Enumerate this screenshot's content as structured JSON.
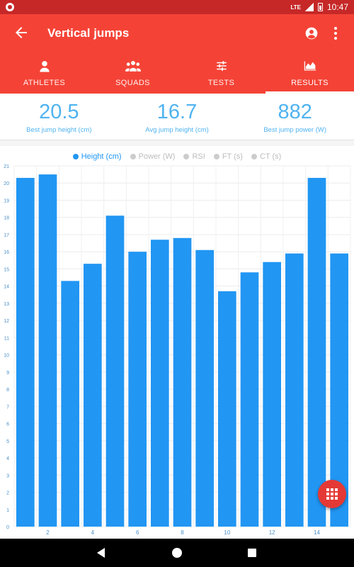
{
  "status": {
    "network": "LTE",
    "time": "10:47"
  },
  "app": {
    "title": "Vertical jumps"
  },
  "tabs": [
    {
      "label": "ATHLETES",
      "icon": "person-icon"
    },
    {
      "label": "SQUADS",
      "icon": "group-icon"
    },
    {
      "label": "TESTS",
      "icon": "sliders-icon"
    },
    {
      "label": "RESULTS",
      "icon": "area-chart-icon",
      "active": true
    }
  ],
  "stats": [
    {
      "value": "20.5",
      "label": "Best jump height (cm)"
    },
    {
      "value": "16.7",
      "label": "Avg jump height (cm)"
    },
    {
      "value": "882",
      "label": "Best jump power (W)"
    }
  ],
  "legend": [
    {
      "label": "Height (cm)",
      "active": true
    },
    {
      "label": "Power (W)",
      "active": false
    },
    {
      "label": "RSI",
      "active": false
    },
    {
      "label": "FT (s)",
      "active": false
    },
    {
      "label": "CT (s)",
      "active": false
    }
  ],
  "colors": {
    "accent": "#f44336",
    "bar": "#2196f3",
    "stat_text": "#4fb3f0"
  },
  "chart_data": {
    "type": "bar",
    "x": [
      1,
      2,
      3,
      4,
      5,
      6,
      7,
      8,
      9,
      10,
      11,
      12,
      13,
      14,
      15
    ],
    "x_ticks": [
      2,
      4,
      6,
      8,
      10,
      12,
      14
    ],
    "series": [
      {
        "name": "Height (cm)",
        "values": [
          20.3,
          20.5,
          14.3,
          15.3,
          18.1,
          16.0,
          16.7,
          16.8,
          16.1,
          13.7,
          14.8,
          15.4,
          15.9,
          20.3,
          15.9
        ]
      }
    ],
    "y_ticks": [
      0,
      1,
      2,
      3,
      4,
      5,
      6,
      7,
      8,
      9,
      10,
      11,
      12,
      13,
      14,
      15,
      16,
      17,
      18,
      19,
      20,
      21
    ],
    "ylim": [
      0,
      21
    ],
    "grid": true,
    "legend_position": "top-center"
  }
}
